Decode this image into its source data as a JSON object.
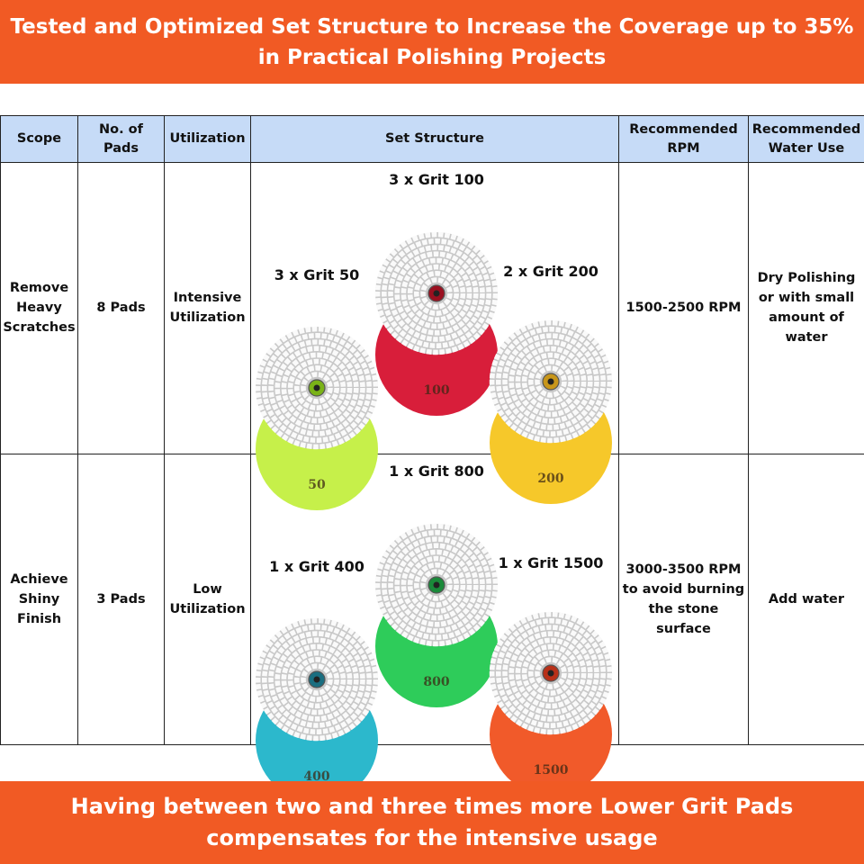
{
  "header_banner": {
    "line1": "Tested and Optimized Set Structure to Increase the Coverage up to 35%",
    "line2": "in Practical Polishing Projects",
    "background_color": "#f15a24"
  },
  "table": {
    "headers": {
      "scope": "Scope",
      "pads": "No. of Pads",
      "utilization": "Utilization",
      "set_structure": "Set Structure",
      "rpm": "Recommended RPM",
      "water": "Recommended Water Use"
    },
    "header_color": "#c6dbf7",
    "rows": [
      {
        "scope": "Remove Heavy Scratches",
        "pads": "8 Pads",
        "utilization": "Intensive Utilization",
        "rpm": "1500-2500 RPM",
        "water": "Dry Polishing or with small amount of water",
        "set": [
          {
            "label": "3 x Grit 50",
            "grit": "50",
            "color": "#c6f04a",
            "center_color": "#7ab317"
          },
          {
            "label": "3 x Grit 100",
            "grit": "100",
            "color": "#d81e3a",
            "center_color": "#9b1020"
          },
          {
            "label": "2 x Grit 200",
            "grit": "200",
            "color": "#f6c82a",
            "center_color": "#c8961a"
          }
        ]
      },
      {
        "scope": "Achieve Shiny Finish",
        "pads": "3 Pads",
        "utilization": "Low Utilization",
        "rpm": "3000-3500 RPM to avoid burning the stone surface",
        "water": "Add water",
        "set": [
          {
            "label": "1 x Grit 400",
            "grit": "400",
            "color": "#2cb8cc",
            "center_color": "#1a6e80"
          },
          {
            "label": "1 x Grit 800",
            "grit": "800",
            "color": "#2ecc5a",
            "center_color": "#1a8a3a"
          },
          {
            "label": "1 x Grit 1500",
            "grit": "1500",
            "color": "#f15a2a",
            "center_color": "#b83018"
          }
        ]
      }
    ]
  },
  "footer_banner": {
    "line1": "Having between two and three times more Lower Grit Pads",
    "line2": "compensates for the intensive usage",
    "background_color": "#f15a24"
  }
}
